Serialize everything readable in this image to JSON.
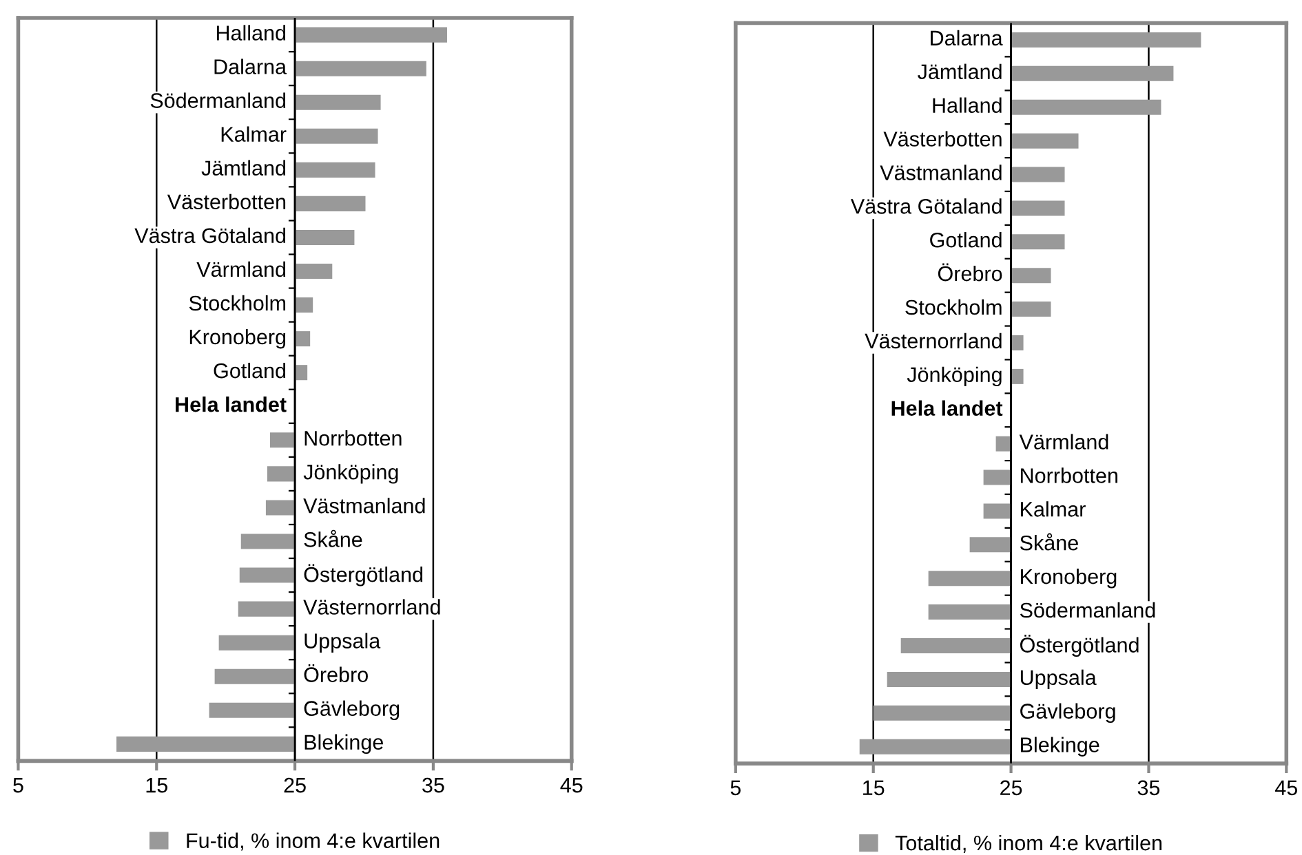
{
  "chart_data": [
    {
      "type": "bar",
      "orientation": "horizontal",
      "categories": [
        "Halland",
        "Dalarna",
        "Södermanland",
        "Kalmar",
        "Jämtland",
        "Västerbotten",
        "Västra Götaland",
        "Värmland",
        "Stockholm",
        "Kronoberg",
        "Gotland",
        "Hela landet",
        "Norrbotten",
        "Jönköping",
        "Västmanland",
        "Skåne",
        "Östergötland",
        "Västernorrland",
        "Uppsala",
        "Örebro",
        "Gävleborg",
        "Blekinge"
      ],
      "series": [
        {
          "name": "Fu-tid, % inom 4:e kvartilen",
          "color": "#999999",
          "base": [
            25,
            25,
            25,
            25,
            25,
            25,
            25,
            25,
            25,
            25,
            25,
            null,
            25,
            25,
            25,
            25,
            25,
            25,
            25,
            25,
            25,
            25
          ],
          "values": [
            11.0,
            9.5,
            6.2,
            6.0,
            5.8,
            5.1,
            4.3,
            2.7,
            1.3,
            1.1,
            0.9,
            null,
            -1.8,
            -2.0,
            -2.1,
            -3.9,
            -4.0,
            -4.1,
            -5.5,
            -5.8,
            -6.2,
            -12.9
          ]
        }
      ],
      "xlim": [
        5,
        45
      ],
      "xticks": [
        5,
        15,
        25,
        35,
        45
      ],
      "grid": "x",
      "legend": "bottom"
    },
    {
      "type": "bar",
      "orientation": "horizontal",
      "categories": [
        "Dalarna",
        "Jämtland",
        "Halland",
        "Västerbotten",
        "Västmanland",
        "Västra Götaland",
        "Gotland",
        "Örebro",
        "Stockholm",
        "Västernorrland",
        "Jönköping",
        "Hela landet",
        "Värmland",
        "Norrbotten",
        "Kalmar",
        "Skåne",
        "Kronoberg",
        "Södermanland",
        "Östergötland",
        "Uppsala",
        "Gävleborg",
        "Blekinge"
      ],
      "series": [
        {
          "name": "Totaltid, % inom 4:e kvartilen",
          "color": "#999999",
          "base": [
            25,
            25,
            25,
            25,
            25,
            25,
            25,
            25,
            25,
            25,
            25,
            null,
            25,
            25,
            25,
            25,
            25,
            25,
            25,
            25,
            25,
            25
          ],
          "values": [
            13.8,
            11.8,
            10.9,
            4.9,
            3.9,
            3.9,
            3.9,
            2.9,
            2.9,
            0.9,
            0.9,
            null,
            -1.1,
            -2.0,
            -2.0,
            -3.0,
            -6.0,
            -6.0,
            -8.0,
            -9.0,
            -10.0,
            -11.0
          ]
        }
      ],
      "xlim": [
        5,
        45
      ],
      "xticks": [
        5,
        15,
        25,
        35,
        45
      ],
      "grid": "x",
      "legend": "bottom"
    }
  ]
}
